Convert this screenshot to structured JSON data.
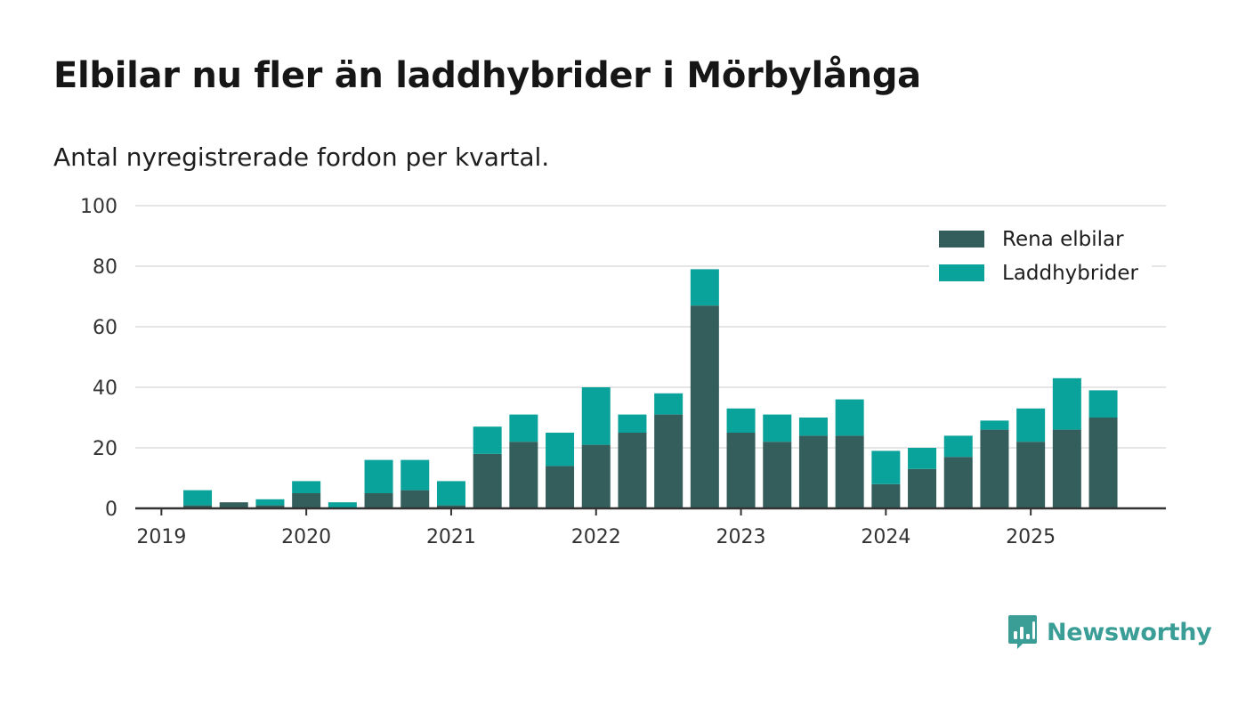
{
  "title": "Elbilar nu fler än laddhybrider i Mörbylånga",
  "subtitle": "Antal nyregistrerade fordon per kvartal.",
  "brand": {
    "name": "Newsworthy",
    "icon": "newsworthy-logo-icon",
    "color": "#3a9e97"
  },
  "colors": {
    "Rena elbilar": "#335e5b",
    "Laddhybrider": "#0aa39c",
    "grid": "#dddddd",
    "axis": "#333333"
  },
  "chart_data": {
    "type": "bar",
    "stacked": true,
    "title": "Elbilar nu fler än laddhybrider i Mörbylånga",
    "subtitle": "Antal nyregistrerade fordon per kvartal.",
    "xlabel": "",
    "ylabel": "",
    "ylim": [
      0,
      100
    ],
    "yticks": [
      0,
      20,
      40,
      60,
      80,
      100
    ],
    "grid": true,
    "legend_position": "top-right",
    "categories": [
      "2019 Q1",
      "2019 Q2",
      "2019 Q3",
      "2019 Q4",
      "2020 Q1",
      "2020 Q2",
      "2020 Q3",
      "2020 Q4",
      "2021 Q1",
      "2021 Q2",
      "2021 Q3",
      "2021 Q4",
      "2022 Q1",
      "2022 Q2",
      "2022 Q3",
      "2022 Q4",
      "2023 Q1",
      "2023 Q2",
      "2023 Q3",
      "2023 Q4",
      "2024 Q1",
      "2024 Q2",
      "2024 Q3",
      "2024 Q4",
      "2025 Q1",
      "2025 Q2",
      "2025 Q3"
    ],
    "xtick_labels": [
      "2019",
      "2020",
      "2021",
      "2022",
      "2023",
      "2024",
      "2025"
    ],
    "series": [
      {
        "name": "Rena elbilar",
        "values": [
          0,
          1,
          2,
          1,
          5,
          0,
          5,
          6,
          1,
          18,
          22,
          14,
          21,
          25,
          31,
          67,
          25,
          22,
          24,
          24,
          8,
          13,
          17,
          26,
          22,
          26,
          30
        ]
      },
      {
        "name": "Laddhybrider",
        "values": [
          0,
          5,
          0,
          2,
          4,
          2,
          11,
          10,
          8,
          9,
          9,
          11,
          19,
          6,
          7,
          12,
          8,
          9,
          6,
          12,
          11,
          7,
          7,
          3,
          11,
          17,
          9
        ]
      }
    ]
  }
}
